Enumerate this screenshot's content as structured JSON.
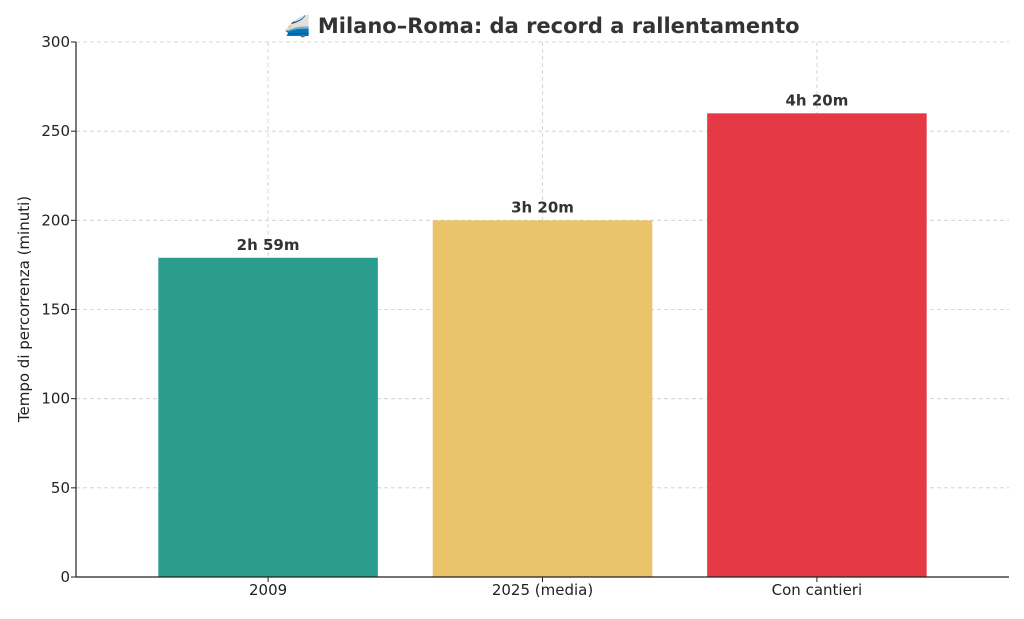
{
  "chart_data": {
    "type": "bar",
    "title": "🚄 Milano–Roma: da record a rallentamento",
    "xlabel": "",
    "ylabel": "Tempo di percorrenza (minuti)",
    "categories": [
      "2009",
      "2025 (media)",
      "Con cantieri"
    ],
    "values": [
      179,
      200,
      260
    ],
    "data_labels": [
      "2h 59m",
      "3h 20m",
      "4h 20m"
    ],
    "colors": [
      "#2a9d8f",
      "#e9c46a",
      "#e63946"
    ],
    "ylim": [
      0,
      300
    ],
    "yticks": [
      0,
      50,
      100,
      150,
      200,
      250,
      300
    ],
    "grid": true,
    "legend": "none"
  }
}
